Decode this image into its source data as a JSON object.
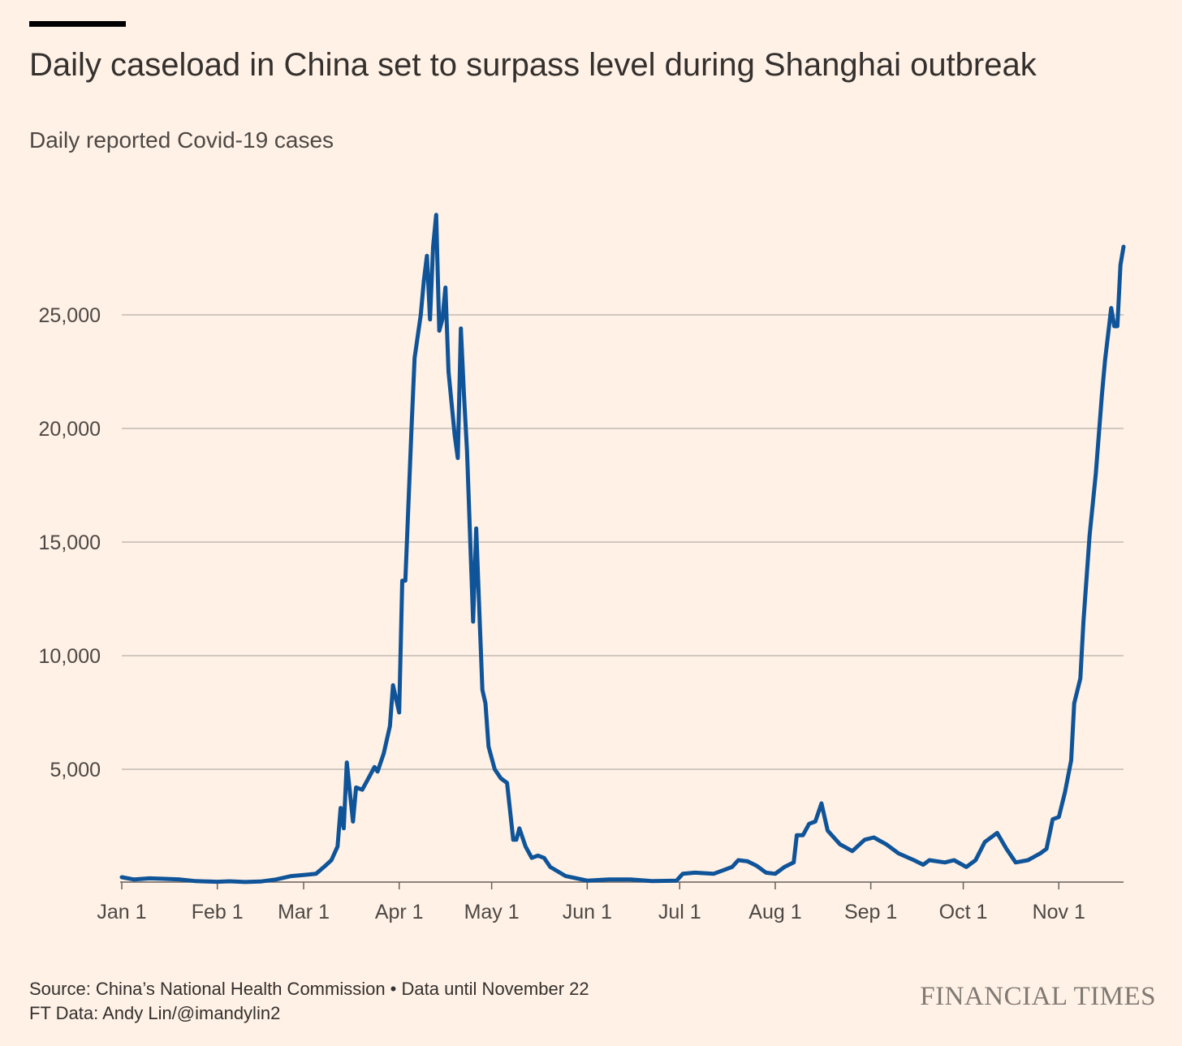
{
  "header": {
    "title": "Daily caseload in China set to surpass level during Shanghai outbreak",
    "subtitle": "Daily reported Covid-19 cases"
  },
  "footer": {
    "source_line1": "Source: China’s National Health Commission • Data until November 22",
    "source_line2": "FT Data: Andy Lin/@imandylin2",
    "brand": "FINANCIAL TIMES"
  },
  "colors": {
    "background": "#fff1e5",
    "line": "#0f5499",
    "grid": "#c2bbb4",
    "text": "#33302e"
  },
  "chart_data": {
    "type": "line",
    "title": "Daily caseload in China set to surpass level during Shanghai outbreak",
    "subtitle": "Daily reported Covid-19 cases",
    "xlabel": "",
    "ylabel": "",
    "x_start": "2022-01-01",
    "x_end": "2022-11-22",
    "xlim": [
      "2022-01-01",
      "2022-11-22"
    ],
    "ylim": [
      0,
      30000
    ],
    "yticks": [
      5000,
      10000,
      15000,
      20000,
      25000
    ],
    "ytick_labels": [
      "5,000",
      "10,000",
      "15,000",
      "20,000",
      "25,000"
    ],
    "xticks": [
      "2022-01-01",
      "2022-02-01",
      "2022-03-01",
      "2022-04-01",
      "2022-05-01",
      "2022-06-01",
      "2022-07-01",
      "2022-08-01",
      "2022-09-01",
      "2022-10-01",
      "2022-11-01"
    ],
    "xtick_labels": [
      "Jan 1",
      "Feb 1",
      "Mar 1",
      "Apr 1",
      "May 1",
      "Jun 1",
      "Jul 1",
      "Aug 1",
      "Sep 1",
      "Oct 1",
      "Nov 1"
    ],
    "grid": "horizontal",
    "series": [
      {
        "name": "",
        "points": [
          [
            "2022-01-01",
            250
          ],
          [
            "2022-01-05",
            150
          ],
          [
            "2022-01-10",
            200
          ],
          [
            "2022-01-15",
            180
          ],
          [
            "2022-01-20",
            150
          ],
          [
            "2022-01-25",
            80
          ],
          [
            "2022-02-01",
            50
          ],
          [
            "2022-02-05",
            70
          ],
          [
            "2022-02-10",
            40
          ],
          [
            "2022-02-15",
            60
          ],
          [
            "2022-02-20",
            150
          ],
          [
            "2022-02-25",
            300
          ],
          [
            "2022-03-01",
            350
          ],
          [
            "2022-03-05",
            400
          ],
          [
            "2022-03-08",
            750
          ],
          [
            "2022-03-10",
            1000
          ],
          [
            "2022-03-12",
            1600
          ],
          [
            "2022-03-13",
            3300
          ],
          [
            "2022-03-14",
            2400
          ],
          [
            "2022-03-15",
            5300
          ],
          [
            "2022-03-17",
            2700
          ],
          [
            "2022-03-18",
            4200
          ],
          [
            "2022-03-20",
            4100
          ],
          [
            "2022-03-22",
            4600
          ],
          [
            "2022-03-24",
            5100
          ],
          [
            "2022-03-25",
            4900
          ],
          [
            "2022-03-27",
            5700
          ],
          [
            "2022-03-29",
            6900
          ],
          [
            "2022-03-30",
            8700
          ],
          [
            "2022-04-01",
            7500
          ],
          [
            "2022-04-02",
            13300
          ],
          [
            "2022-04-03",
            13300
          ],
          [
            "2022-04-05",
            20000
          ],
          [
            "2022-04-06",
            23100
          ],
          [
            "2022-04-08",
            25000
          ],
          [
            "2022-04-09",
            26500
          ],
          [
            "2022-04-10",
            27600
          ],
          [
            "2022-04-11",
            24800
          ],
          [
            "2022-04-12",
            28000
          ],
          [
            "2022-04-13",
            29400
          ],
          [
            "2022-04-14",
            24300
          ],
          [
            "2022-04-15",
            24800
          ],
          [
            "2022-04-16",
            26200
          ],
          [
            "2022-04-17",
            22500
          ],
          [
            "2022-04-19",
            19700
          ],
          [
            "2022-04-20",
            18700
          ],
          [
            "2022-04-21",
            24400
          ],
          [
            "2022-04-22",
            21500
          ],
          [
            "2022-04-23",
            19000
          ],
          [
            "2022-04-25",
            11500
          ],
          [
            "2022-04-26",
            15600
          ],
          [
            "2022-04-27",
            12000
          ],
          [
            "2022-04-28",
            8500
          ],
          [
            "2022-04-29",
            7900
          ],
          [
            "2022-04-30",
            6000
          ],
          [
            "2022-05-02",
            5000
          ],
          [
            "2022-05-04",
            4600
          ],
          [
            "2022-05-06",
            4400
          ],
          [
            "2022-05-08",
            1900
          ],
          [
            "2022-05-09",
            1900
          ],
          [
            "2022-05-10",
            2400
          ],
          [
            "2022-05-12",
            1600
          ],
          [
            "2022-05-14",
            1100
          ],
          [
            "2022-05-16",
            1200
          ],
          [
            "2022-05-18",
            1100
          ],
          [
            "2022-05-20",
            700
          ],
          [
            "2022-05-25",
            300
          ],
          [
            "2022-06-01",
            100
          ],
          [
            "2022-06-08",
            150
          ],
          [
            "2022-06-15",
            150
          ],
          [
            "2022-06-22",
            80
          ],
          [
            "2022-06-30",
            100
          ],
          [
            "2022-07-02",
            400
          ],
          [
            "2022-07-06",
            450
          ],
          [
            "2022-07-12",
            400
          ],
          [
            "2022-07-18",
            700
          ],
          [
            "2022-07-20",
            1000
          ],
          [
            "2022-07-23",
            950
          ],
          [
            "2022-07-26",
            750
          ],
          [
            "2022-07-29",
            450
          ],
          [
            "2022-08-01",
            400
          ],
          [
            "2022-08-04",
            700
          ],
          [
            "2022-08-07",
            900
          ],
          [
            "2022-08-08",
            2100
          ],
          [
            "2022-08-10",
            2100
          ],
          [
            "2022-08-12",
            2600
          ],
          [
            "2022-08-14",
            2700
          ],
          [
            "2022-08-16",
            3500
          ],
          [
            "2022-08-18",
            2300
          ],
          [
            "2022-08-22",
            1700
          ],
          [
            "2022-08-26",
            1400
          ],
          [
            "2022-08-30",
            1900
          ],
          [
            "2022-09-02",
            2000
          ],
          [
            "2022-09-06",
            1700
          ],
          [
            "2022-09-10",
            1300
          ],
          [
            "2022-09-15",
            1000
          ],
          [
            "2022-09-18",
            800
          ],
          [
            "2022-09-20",
            1000
          ],
          [
            "2022-09-25",
            900
          ],
          [
            "2022-09-28",
            1000
          ],
          [
            "2022-10-02",
            700
          ],
          [
            "2022-10-05",
            1000
          ],
          [
            "2022-10-08",
            1800
          ],
          [
            "2022-10-10",
            2000
          ],
          [
            "2022-10-12",
            2200
          ],
          [
            "2022-10-15",
            1500
          ],
          [
            "2022-10-18",
            900
          ],
          [
            "2022-10-22",
            1000
          ],
          [
            "2022-10-26",
            1300
          ],
          [
            "2022-10-28",
            1500
          ],
          [
            "2022-10-30",
            2800
          ],
          [
            "2022-11-01",
            2900
          ],
          [
            "2022-11-03",
            4000
          ],
          [
            "2022-11-05",
            5400
          ],
          [
            "2022-11-06",
            7900
          ],
          [
            "2022-11-08",
            9000
          ],
          [
            "2022-11-09",
            11500
          ],
          [
            "2022-11-11",
            15300
          ],
          [
            "2022-11-13",
            18000
          ],
          [
            "2022-11-15",
            21500
          ],
          [
            "2022-11-16",
            23000
          ],
          [
            "2022-11-18",
            25300
          ],
          [
            "2022-11-19",
            24500
          ],
          [
            "2022-11-20",
            24500
          ],
          [
            "2022-11-21",
            27200
          ],
          [
            "2022-11-22",
            28000
          ]
        ]
      }
    ]
  }
}
